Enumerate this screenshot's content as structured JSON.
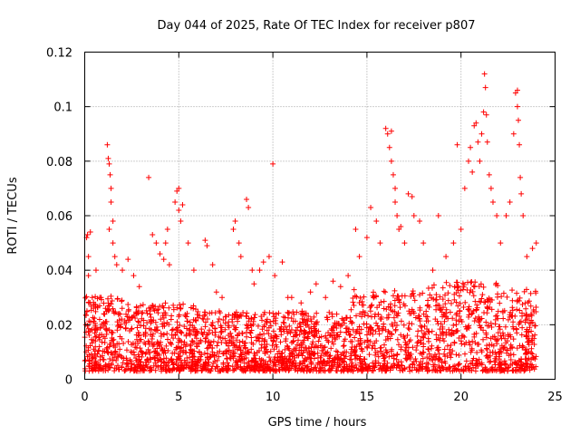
{
  "chart_data": {
    "type": "scatter",
    "title": "Day 044 of 2025, Rate Of TEC Index for receiver p807",
    "xlabel": "GPS time / hours",
    "ylabel": "ROTI / TECUs",
    "xlim": [
      0,
      25
    ],
    "ylim": [
      0,
      0.12
    ],
    "xticks": [
      0,
      5,
      10,
      15,
      20,
      25
    ],
    "xtick_labels": [
      "0",
      "5",
      "10",
      "15",
      "20",
      "25"
    ],
    "yticks": [
      0,
      0.02,
      0.04,
      0.06,
      0.08,
      0.1,
      0.12
    ],
    "ytick_labels": [
      "0",
      "0.02",
      "0.04",
      "0.06",
      "0.08",
      "0.1",
      "0.12"
    ],
    "grid": true,
    "marker": "plus",
    "color": "#ff0000",
    "series": [
      {
        "name": "ROTI",
        "points": [
          [
            0.1,
            0.052
          ],
          [
            0.15,
            0.053
          ],
          [
            0.2,
            0.045
          ],
          [
            0.3,
            0.054
          ],
          [
            0.2,
            0.038
          ],
          [
            0.4,
            0.03
          ],
          [
            0.6,
            0.04
          ],
          [
            0.8,
            0.03
          ],
          [
            1.2,
            0.086
          ],
          [
            1.25,
            0.081
          ],
          [
            1.3,
            0.079
          ],
          [
            1.35,
            0.075
          ],
          [
            1.4,
            0.07
          ],
          [
            1.4,
            0.065
          ],
          [
            1.5,
            0.058
          ],
          [
            1.3,
            0.055
          ],
          [
            1.5,
            0.05
          ],
          [
            1.6,
            0.045
          ],
          [
            1.7,
            0.042
          ],
          [
            2.0,
            0.04
          ],
          [
            2.3,
            0.044
          ],
          [
            2.6,
            0.038
          ],
          [
            2.9,
            0.034
          ],
          [
            3.4,
            0.074
          ],
          [
            3.6,
            0.053
          ],
          [
            3.8,
            0.05
          ],
          [
            4.0,
            0.046
          ],
          [
            4.2,
            0.044
          ],
          [
            4.3,
            0.05
          ],
          [
            4.4,
            0.055
          ],
          [
            4.5,
            0.042
          ],
          [
            4.8,
            0.065
          ],
          [
            4.9,
            0.069
          ],
          [
            5.0,
            0.07
          ],
          [
            5.0,
            0.062
          ],
          [
            5.1,
            0.058
          ],
          [
            5.2,
            0.064
          ],
          [
            5.5,
            0.05
          ],
          [
            5.8,
            0.04
          ],
          [
            6.4,
            0.051
          ],
          [
            6.5,
            0.049
          ],
          [
            6.8,
            0.042
          ],
          [
            7.0,
            0.032
          ],
          [
            7.3,
            0.03
          ],
          [
            7.9,
            0.055
          ],
          [
            8.0,
            0.058
          ],
          [
            8.2,
            0.05
          ],
          [
            8.3,
            0.045
          ],
          [
            8.6,
            0.066
          ],
          [
            8.7,
            0.063
          ],
          [
            8.9,
            0.04
          ],
          [
            9.0,
            0.035
          ],
          [
            9.3,
            0.04
          ],
          [
            9.5,
            0.043
          ],
          [
            9.8,
            0.045
          ],
          [
            10.0,
            0.079
          ],
          [
            10.1,
            0.038
          ],
          [
            10.5,
            0.043
          ],
          [
            10.8,
            0.03
          ],
          [
            11.0,
            0.03
          ],
          [
            11.5,
            0.028
          ],
          [
            12.0,
            0.032
          ],
          [
            12.3,
            0.035
          ],
          [
            12.8,
            0.03
          ],
          [
            13.2,
            0.036
          ],
          [
            13.6,
            0.034
          ],
          [
            14.0,
            0.038
          ],
          [
            14.4,
            0.055
          ],
          [
            14.6,
            0.045
          ],
          [
            15.0,
            0.052
          ],
          [
            15.2,
            0.063
          ],
          [
            15.5,
            0.058
          ],
          [
            15.7,
            0.05
          ],
          [
            16.0,
            0.092
          ],
          [
            16.1,
            0.09
          ],
          [
            16.2,
            0.085
          ],
          [
            16.3,
            0.091
          ],
          [
            16.3,
            0.08
          ],
          [
            16.4,
            0.075
          ],
          [
            16.5,
            0.07
          ],
          [
            16.5,
            0.065
          ],
          [
            16.6,
            0.06
          ],
          [
            16.7,
            0.055
          ],
          [
            16.8,
            0.056
          ],
          [
            17.0,
            0.05
          ],
          [
            17.2,
            0.068
          ],
          [
            17.4,
            0.067
          ],
          [
            17.5,
            0.06
          ],
          [
            17.8,
            0.058
          ],
          [
            18.0,
            0.05
          ],
          [
            18.5,
            0.04
          ],
          [
            18.8,
            0.06
          ],
          [
            19.2,
            0.045
          ],
          [
            19.6,
            0.05
          ],
          [
            19.8,
            0.086
          ],
          [
            20.0,
            0.055
          ],
          [
            20.2,
            0.07
          ],
          [
            20.4,
            0.08
          ],
          [
            20.5,
            0.085
          ],
          [
            20.6,
            0.076
          ],
          [
            20.7,
            0.093
          ],
          [
            20.8,
            0.094
          ],
          [
            20.9,
            0.087
          ],
          [
            21.0,
            0.08
          ],
          [
            21.1,
            0.09
          ],
          [
            21.2,
            0.098
          ],
          [
            21.25,
            0.112
          ],
          [
            21.3,
            0.107
          ],
          [
            21.35,
            0.097
          ],
          [
            21.4,
            0.087
          ],
          [
            21.5,
            0.075
          ],
          [
            21.6,
            0.07
          ],
          [
            21.7,
            0.065
          ],
          [
            21.9,
            0.06
          ],
          [
            22.1,
            0.05
          ],
          [
            22.4,
            0.06
          ],
          [
            22.6,
            0.065
          ],
          [
            22.8,
            0.09
          ],
          [
            22.9,
            0.105
          ],
          [
            23.0,
            0.106
          ],
          [
            23.0,
            0.1
          ],
          [
            23.05,
            0.095
          ],
          [
            23.1,
            0.086
          ],
          [
            23.15,
            0.074
          ],
          [
            23.2,
            0.068
          ],
          [
            23.3,
            0.06
          ],
          [
            23.5,
            0.045
          ],
          [
            23.8,
            0.048
          ],
          [
            24.0,
            0.05
          ]
        ]
      }
    ]
  }
}
